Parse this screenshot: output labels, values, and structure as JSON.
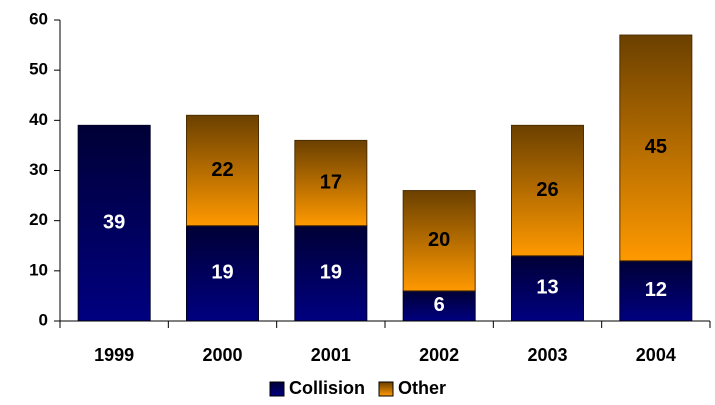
{
  "chart_data": {
    "type": "stacked_bar",
    "categories": [
      "1999",
      "2000",
      "2001",
      "2002",
      "2003",
      "2004"
    ],
    "series": [
      {
        "name": "Collision",
        "color": "#000080",
        "values": [
          39,
          19,
          19,
          6,
          13,
          12
        ]
      },
      {
        "name": "Other",
        "color": "#ff9900",
        "values": [
          null,
          22,
          17,
          20,
          26,
          45
        ]
      }
    ],
    "ylim": [
      0,
      60
    ],
    "yticks": [
      0,
      10,
      20,
      30,
      40,
      50,
      60
    ],
    "grid": false,
    "legend": "bottom"
  }
}
